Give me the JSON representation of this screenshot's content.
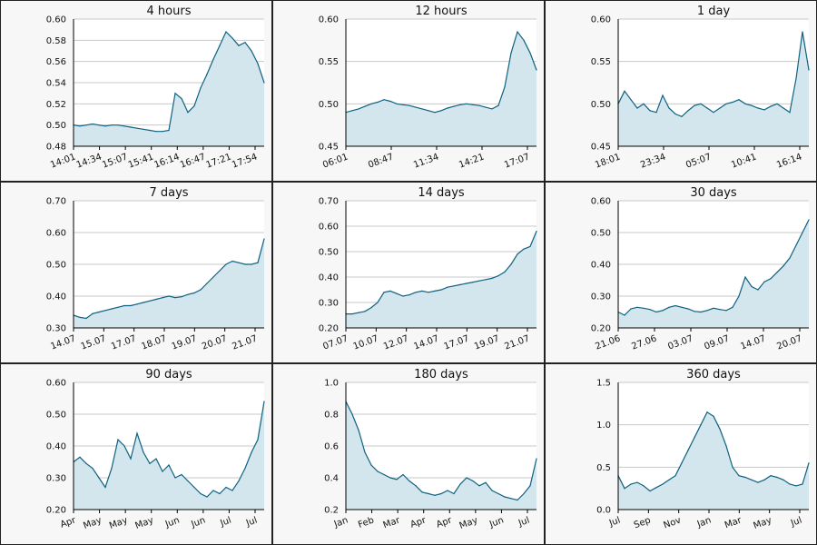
{
  "colors": {
    "line": "#0f6280",
    "fill": "#d3e5ed",
    "grid": "#c8c8c8",
    "panel_bg": "#f7f7f7"
  },
  "chart_data": [
    {
      "type": "area",
      "title": "4 hours",
      "ylim": [
        0.48,
        0.6
      ],
      "yticks": [
        "0.48",
        "0.50",
        "0.52",
        "0.54",
        "0.56",
        "0.58",
        "0.60"
      ],
      "ytick_values": [
        0.48,
        0.5,
        0.52,
        0.54,
        0.56,
        0.58,
        0.6
      ],
      "xtick_labels": [
        "14:01",
        "14:34",
        "15:07",
        "15:41",
        "16:14",
        "16:47",
        "17:21",
        "17:54"
      ],
      "values": [
        0.5,
        0.499,
        0.5,
        0.501,
        0.5,
        0.499,
        0.5,
        0.5,
        0.499,
        0.498,
        0.497,
        0.496,
        0.495,
        0.494,
        0.494,
        0.495,
        0.53,
        0.525,
        0.512,
        0.518,
        0.535,
        0.548,
        0.562,
        0.575,
        0.588,
        0.582,
        0.575,
        0.578,
        0.57,
        0.558,
        0.54
      ]
    },
    {
      "type": "area",
      "title": "12 hours",
      "ylim": [
        0.45,
        0.6
      ],
      "yticks": [
        "0.45",
        "0.50",
        "0.55",
        "0.60"
      ],
      "ytick_values": [
        0.45,
        0.5,
        0.55,
        0.6
      ],
      "xtick_labels": [
        "06:01",
        "08:47",
        "11:34",
        "14:21",
        "17:07"
      ],
      "values": [
        0.49,
        0.492,
        0.494,
        0.497,
        0.5,
        0.502,
        0.505,
        0.503,
        0.5,
        0.499,
        0.498,
        0.496,
        0.494,
        0.492,
        0.49,
        0.492,
        0.495,
        0.497,
        0.499,
        0.5,
        0.499,
        0.498,
        0.496,
        0.494,
        0.498,
        0.52,
        0.56,
        0.585,
        0.575,
        0.56,
        0.54
      ]
    },
    {
      "type": "area",
      "title": "1 day",
      "ylim": [
        0.45,
        0.6
      ],
      "yticks": [
        "0.45",
        "0.50",
        "0.55",
        "0.60"
      ],
      "ytick_values": [
        0.45,
        0.5,
        0.55,
        0.6
      ],
      "xtick_labels": [
        "18:01",
        "23:34",
        "05:07",
        "10:41",
        "16:14"
      ],
      "values": [
        0.5,
        0.515,
        0.505,
        0.495,
        0.5,
        0.492,
        0.49,
        0.51,
        0.495,
        0.488,
        0.485,
        0.492,
        0.498,
        0.5,
        0.495,
        0.49,
        0.495,
        0.5,
        0.502,
        0.505,
        0.5,
        0.498,
        0.495,
        0.493,
        0.497,
        0.5,
        0.495,
        0.49,
        0.53,
        0.585,
        0.54
      ]
    },
    {
      "type": "area",
      "title": "7 days",
      "ylim": [
        0.3,
        0.7
      ],
      "yticks": [
        "0.30",
        "0.40",
        "0.50",
        "0.60",
        "0.70"
      ],
      "ytick_values": [
        0.3,
        0.4,
        0.5,
        0.6,
        0.7
      ],
      "xtick_labels": [
        "14.07",
        "15.07",
        "17.07",
        "18.07",
        "19.07",
        "20.07",
        "21.07"
      ],
      "values": [
        0.34,
        0.333,
        0.33,
        0.345,
        0.35,
        0.355,
        0.36,
        0.365,
        0.37,
        0.37,
        0.375,
        0.38,
        0.385,
        0.39,
        0.395,
        0.4,
        0.395,
        0.398,
        0.405,
        0.41,
        0.42,
        0.44,
        0.46,
        0.48,
        0.5,
        0.51,
        0.505,
        0.5,
        0.5,
        0.505,
        0.58
      ]
    },
    {
      "type": "area",
      "title": "14 days",
      "ylim": [
        0.2,
        0.7
      ],
      "yticks": [
        "0.20",
        "0.30",
        "0.40",
        "0.50",
        "0.60",
        "0.70"
      ],
      "ytick_values": [
        0.2,
        0.3,
        0.4,
        0.5,
        0.6,
        0.7
      ],
      "xtick_labels": [
        "07.07",
        "10.07",
        "12.07",
        "14.07",
        "17.07",
        "19.07",
        "21.07"
      ],
      "values": [
        0.255,
        0.255,
        0.26,
        0.265,
        0.28,
        0.3,
        0.34,
        0.345,
        0.335,
        0.325,
        0.33,
        0.34,
        0.345,
        0.34,
        0.345,
        0.35,
        0.36,
        0.365,
        0.37,
        0.375,
        0.38,
        0.385,
        0.39,
        0.395,
        0.405,
        0.42,
        0.45,
        0.49,
        0.51,
        0.52,
        0.58
      ]
    },
    {
      "type": "area",
      "title": "30 days",
      "ylim": [
        0.2,
        0.6
      ],
      "yticks": [
        "0.20",
        "0.30",
        "0.40",
        "0.50",
        "0.60"
      ],
      "ytick_values": [
        0.2,
        0.3,
        0.4,
        0.5,
        0.6
      ],
      "xtick_labels": [
        "21.06",
        "27.06",
        "03.07",
        "09.07",
        "14.07",
        "20.07"
      ],
      "values": [
        0.25,
        0.24,
        0.26,
        0.265,
        0.262,
        0.258,
        0.25,
        0.255,
        0.265,
        0.27,
        0.265,
        0.26,
        0.252,
        0.25,
        0.255,
        0.262,
        0.258,
        0.255,
        0.265,
        0.3,
        0.36,
        0.33,
        0.32,
        0.345,
        0.355,
        0.375,
        0.395,
        0.42,
        0.46,
        0.5,
        0.54
      ]
    },
    {
      "type": "area",
      "title": "90 days",
      "ylim": [
        0.2,
        0.6
      ],
      "yticks": [
        "0.20",
        "0.30",
        "0.40",
        "0.50",
        "0.60"
      ],
      "ytick_values": [
        0.2,
        0.3,
        0.4,
        0.5,
        0.6
      ],
      "xtick_labels": [
        "Apr",
        "May",
        "May",
        "May",
        "Jun",
        "Jun",
        "Jul",
        "Jul"
      ],
      "values": [
        0.35,
        0.365,
        0.345,
        0.33,
        0.3,
        0.27,
        0.33,
        0.42,
        0.4,
        0.36,
        0.44,
        0.38,
        0.345,
        0.36,
        0.32,
        0.34,
        0.3,
        0.31,
        0.29,
        0.27,
        0.25,
        0.24,
        0.26,
        0.25,
        0.27,
        0.26,
        0.29,
        0.33,
        0.38,
        0.42,
        0.54
      ]
    },
    {
      "type": "area",
      "title": "180 days",
      "ylim": [
        0.2,
        1.0
      ],
      "yticks": [
        "0.2",
        "0.4",
        "0.6",
        "0.8",
        "1.0"
      ],
      "ytick_values": [
        0.2,
        0.4,
        0.6,
        0.8,
        1.0
      ],
      "xtick_labels": [
        "Jan",
        "Feb",
        "Mar",
        "Apr",
        "Apr",
        "May",
        "Jun",
        "Jul"
      ],
      "values": [
        0.88,
        0.8,
        0.7,
        0.56,
        0.48,
        0.44,
        0.42,
        0.4,
        0.39,
        0.42,
        0.38,
        0.35,
        0.31,
        0.3,
        0.29,
        0.3,
        0.32,
        0.3,
        0.36,
        0.4,
        0.38,
        0.35,
        0.37,
        0.32,
        0.3,
        0.28,
        0.27,
        0.26,
        0.3,
        0.35,
        0.52
      ]
    },
    {
      "type": "area",
      "title": "360 days",
      "ylim": [
        0.0,
        1.5
      ],
      "yticks": [
        "0.0",
        "0.5",
        "1.0",
        "1.5"
      ],
      "ytick_values": [
        0.0,
        0.5,
        1.0,
        1.5
      ],
      "xtick_labels": [
        "Jul",
        "Sep",
        "Nov",
        "Jan",
        "Mar",
        "May",
        "Jul"
      ],
      "values": [
        0.4,
        0.25,
        0.3,
        0.32,
        0.28,
        0.22,
        0.26,
        0.3,
        0.35,
        0.4,
        0.55,
        0.7,
        0.85,
        1.0,
        1.15,
        1.1,
        0.95,
        0.75,
        0.5,
        0.4,
        0.38,
        0.35,
        0.32,
        0.35,
        0.4,
        0.38,
        0.35,
        0.3,
        0.28,
        0.3,
        0.55
      ]
    }
  ]
}
